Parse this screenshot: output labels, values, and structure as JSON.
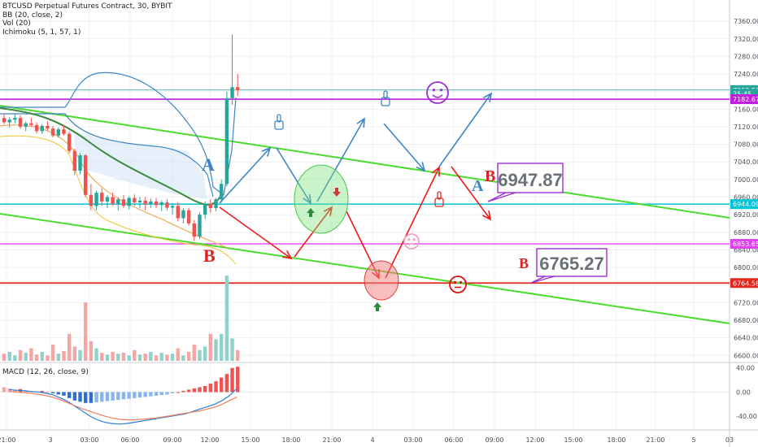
{
  "legend": {
    "symbol": "BTCUSD Perpetual Futures Contract, 30, BYBIT",
    "bb": "BB (20, close, 2)",
    "vol": "Vol (20)",
    "ichimoku": "Ichimoku (5, 1, 57, 1)"
  },
  "macd_label": "MACD (12, 26, close, 9)",
  "annotations": {
    "letter_a_1": "A",
    "letter_b_1": "B",
    "letter_a_2": "A",
    "letter_b_2": "B",
    "letter_b_3": "B",
    "callout_upper": "6947.87",
    "callout_lower": "6765.27"
  },
  "colors": {
    "up": "#26a69a",
    "down": "#ef5350",
    "trend_channel": "#4cdc2e",
    "blue_path": "#3d85c6",
    "red_path": "#ee1b1b",
    "magenta_line": "#c21ee0",
    "cyan_line": "#00c5d8",
    "red_hline": "#e3261e"
  },
  "chart_data": {
    "type": "candlestick",
    "price_axis": {
      "ticks": [
        "7360.00",
        "7320.00",
        "7280.00",
        "7240.00",
        "7200.00",
        "7160.00",
        "7120.00",
        "7080.00",
        "7040.00",
        "7000.00",
        "6960.00",
        "6920.00",
        "6880.00",
        "6840.00",
        "6800.00",
        "6760.00",
        "6720.00",
        "6680.00",
        "6640.00",
        "6600.00"
      ],
      "range": [
        6595,
        7375
      ]
    },
    "price_badges": [
      {
        "value": 7203.5,
        "label": "7203.50",
        "bg": "#26a69a"
      },
      {
        "value": 7195.0,
        "label": "25:45",
        "bg": "#26a69a"
      },
      {
        "value": 7182.67,
        "label": "7182.67",
        "bg": "#c21ee0"
      },
      {
        "value": 6944.09,
        "label": "6944.09",
        "bg": "#00c5d8"
      },
      {
        "value": 6853.65,
        "label": "6853.65",
        "bg": "#e040f0"
      },
      {
        "value": 6764.58,
        "label": "6764.58",
        "bg": "#e3261e"
      }
    ],
    "macd_axis": {
      "ticks": [
        "40.00",
        "0.00",
        "-40.00"
      ],
      "range": [
        -60,
        45
      ]
    },
    "time_axis": [
      "21:00",
      "3",
      "03:00",
      "06:00",
      "09:00",
      "12:00",
      "15:00",
      "18:00",
      "21:00",
      "4",
      "03:00",
      "06:00",
      "09:00",
      "12:00",
      "15:00",
      "18:00",
      "21:00",
      "5",
      "03"
    ],
    "candles": [
      [
        7140,
        7150,
        7125,
        7130
      ],
      [
        7130,
        7142,
        7118,
        7136
      ],
      [
        7136,
        7148,
        7128,
        7140
      ],
      [
        7140,
        7146,
        7115,
        7120
      ],
      [
        7120,
        7132,
        7110,
        7128
      ],
      [
        7128,
        7140,
        7120,
        7124
      ],
      [
        7124,
        7130,
        7105,
        7110
      ],
      [
        7110,
        7126,
        7104,
        7122
      ],
      [
        7122,
        7132,
        7112,
        7116
      ],
      [
        7116,
        7122,
        7096,
        7100
      ],
      [
        7100,
        7118,
        7095,
        7114
      ],
      [
        7114,
        7124,
        7100,
        7104
      ],
      [
        7104,
        7110,
        7060,
        7065
      ],
      [
        7065,
        7070,
        7010,
        7020
      ],
      [
        7020,
        7060,
        7012,
        7055
      ],
      [
        7055,
        7058,
        6960,
        6965
      ],
      [
        6965,
        6990,
        6930,
        6940
      ],
      [
        6940,
        6975,
        6930,
        6970
      ],
      [
        6970,
        6980,
        6940,
        6950
      ],
      [
        6950,
        6965,
        6935,
        6960
      ],
      [
        6960,
        6970,
        6940,
        6945
      ],
      [
        6945,
        6960,
        6930,
        6955
      ],
      [
        6955,
        6965,
        6935,
        6940
      ],
      [
        6940,
        6962,
        6932,
        6958
      ],
      [
        6958,
        6966,
        6940,
        6948
      ],
      [
        6948,
        6960,
        6935,
        6952
      ],
      [
        6952,
        6960,
        6930,
        6944
      ],
      [
        6944,
        6956,
        6936,
        6950
      ],
      [
        6950,
        6958,
        6935,
        6942
      ],
      [
        6942,
        6952,
        6928,
        6948
      ],
      [
        6948,
        6955,
        6930,
        6936
      ],
      [
        6936,
        6946,
        6920,
        6940
      ],
      [
        6940,
        6948,
        6905,
        6912
      ],
      [
        6912,
        6935,
        6900,
        6930
      ],
      [
        6930,
        6936,
        6895,
        6900
      ],
      [
        6900,
        6908,
        6860,
        6870
      ],
      [
        6870,
        6925,
        6865,
        6920
      ],
      [
        6920,
        6950,
        6910,
        6945
      ],
      [
        6945,
        6955,
        6925,
        6935
      ],
      [
        6935,
        6958,
        6928,
        6955
      ],
      [
        6955,
        7000,
        6948,
        6990
      ],
      [
        6990,
        7200,
        6985,
        7185
      ],
      [
        7185,
        7330,
        7170,
        7210
      ],
      [
        7210,
        7240,
        7190,
        7203
      ]
    ],
    "volume": [
      8,
      10,
      6,
      12,
      9,
      14,
      7,
      10,
      6,
      18,
      8,
      11,
      30,
      16,
      12,
      65,
      22,
      14,
      9,
      7,
      10,
      8,
      9,
      6,
      12,
      7,
      8,
      10,
      6,
      9,
      7,
      8,
      14,
      6,
      10,
      18,
      12,
      16,
      30,
      24,
      30,
      95,
      25,
      12
    ],
    "macd_hist": [
      8,
      6,
      4,
      5,
      3,
      2,
      1,
      2,
      0,
      -2,
      -4,
      -6,
      -10,
      -14,
      -16,
      -18,
      -18,
      -17,
      -16,
      -15,
      -14,
      -13,
      -12,
      -11,
      -10,
      -9,
      -8,
      -7,
      -6,
      -5,
      -4,
      -2,
      0,
      2,
      4,
      6,
      8,
      10,
      14,
      18,
      24,
      30,
      40,
      42
    ],
    "macd_line": [
      4,
      3,
      2,
      1,
      0,
      -2,
      -5,
      -10,
      -16,
      -24,
      -32,
      -40,
      -46,
      -50,
      -52,
      -53,
      -52,
      -50,
      -48,
      -46,
      -44,
      -42,
      -40,
      -38,
      -36,
      -32,
      -28,
      -24,
      -20,
      -14,
      -6,
      6
    ],
    "signal_line": [
      1,
      0,
      -1,
      -2,
      -4,
      -6,
      -9,
      -13,
      -18,
      -23,
      -28,
      -32,
      -36,
      -40,
      -43,
      -45,
      -46,
      -46,
      -45,
      -44,
      -43,
      -41,
      -39,
      -37,
      -35,
      -33,
      -31,
      -28,
      -25,
      -20,
      -14,
      -8
    ]
  }
}
